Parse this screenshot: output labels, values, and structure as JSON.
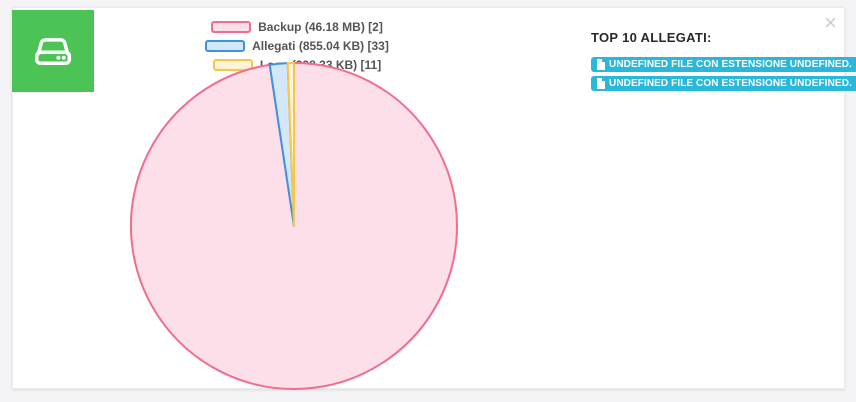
{
  "window": {
    "close_label": "×"
  },
  "tile": {
    "icon": "hard-drive"
  },
  "colors": {
    "tile_green": "#4bc455",
    "badge_cyan": "#29b7db",
    "card_bg": "#ffffff",
    "page_bg": "#f4f4f6"
  },
  "chart_data": {
    "type": "pie",
    "title": "",
    "legend_position": "top",
    "direction": "clockwise",
    "start_angle_deg": 0,
    "unit": "KB",
    "labels": [
      "Backup (46.18 MB) [2]",
      "Allegati (855.04 KB) [33]",
      "Logs (298.33 KB) [11]"
    ],
    "names": [
      "Backup",
      "Allegati",
      "Logs"
    ],
    "sizes": [
      "46.18 MB",
      "855.04 KB",
      "298.33 KB"
    ],
    "counts": [
      2,
      33,
      11
    ],
    "values_kb": [
      47288.32,
      855.04,
      298.33
    ],
    "percentages": [
      97.62,
      1.77,
      0.62
    ],
    "border_colors": [
      "#f26d8d",
      "#4191e1",
      "#f5c84c"
    ],
    "fill_colors": [
      "#fcdfe8",
      "#d2e8f9",
      "#fdf3d7"
    ]
  },
  "panel": {
    "title": "TOP 10 ALLEGATI:",
    "badges": [
      "UNDEFINED FILE CON ESTENSIONE UNDEFINED.",
      "UNDEFINED FILE CON ESTENSIONE UNDEFINED."
    ]
  }
}
